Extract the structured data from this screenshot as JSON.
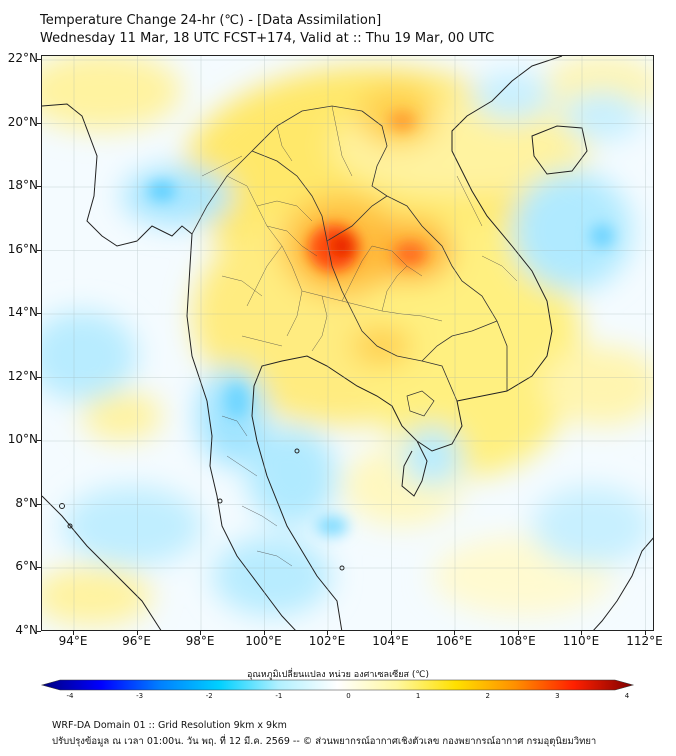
{
  "title_line1": "Temperature Change 24-hr (℃) - [Data Assimilation]",
  "title_line2": "Wednesday 11 Mar, 18 UTC FCST+174, Valid at :: Thu 19 Mar, 00 UTC",
  "lat_labels": [
    "22°N",
    "20°N",
    "18°N",
    "16°N",
    "14°N",
    "12°N",
    "10°N",
    "8°N",
    "6°N",
    "4°N"
  ],
  "lon_labels": [
    "94°E",
    "96°E",
    "98°E",
    "100°E",
    "102°E",
    "104°E",
    "106°E",
    "108°E",
    "110°E",
    "112°E"
  ],
  "colorbar": {
    "title": "อุณหภูมิเปลี่ยนแปลง หน่วย องศาเซลเซียส (℃)",
    "ticks": [
      "-4",
      "-3",
      "-2",
      "-1",
      "0",
      "1",
      "2",
      "3",
      "4"
    ],
    "range": [
      -4,
      4
    ],
    "colors": [
      "#00007f",
      "#0000ff",
      "#0080ff",
      "#00d0ff",
      "#b0f0ff",
      "#ffffff",
      "#fff8a0",
      "#ffe000",
      "#ff9000",
      "#ff2000",
      "#7f0000"
    ]
  },
  "footer_line1": "WRF-DA Domain 01 :: Grid Resolution 9km x 9km",
  "footer_line2": "ปรับปรุงข้อมูล ณ เวลา 01:00น. วัน พฤ. ที่ 12 มี.ค. 2569 -- © ส่วนพยากรณ์อากาศเชิงตัวเลข กองพยากรณ์อากาศ กรมอุตุนิยมวิทยา"
}
